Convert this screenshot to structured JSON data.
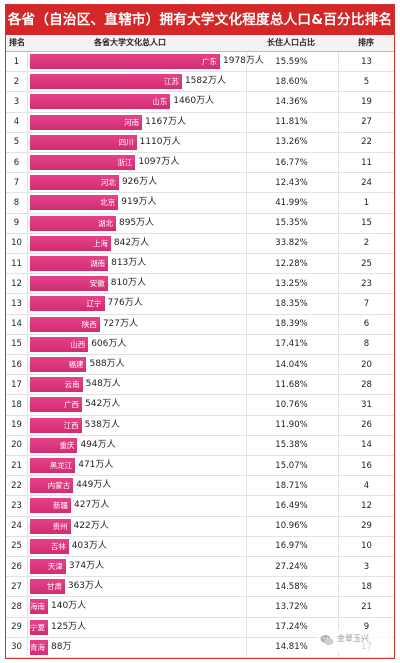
{
  "title": "各省（自治区、直辖市）拥有大学文化程度总人口&百分比排名",
  "watermark": {
    "text": "金翠玉兴",
    "icon": "wechat-icon"
  },
  "colors": {
    "title_bg": "#d42727",
    "bar": "#e0357d",
    "header_bg": "#f3f3f3"
  },
  "chart_data": {
    "type": "table",
    "columns": [
      "排名",
      "各省大学文化总人口",
      "长住人口占比",
      "排序"
    ],
    "value_unit": "万人",
    "rows": [
      {
        "rank": "1",
        "province": "广东",
        "population": 1978,
        "population_label": "1978万人",
        "share": "15.59%",
        "order": "13"
      },
      {
        "rank": "2",
        "province": "江苏",
        "population": 1582,
        "population_label": "1582万人",
        "share": "18.60%",
        "order": "5"
      },
      {
        "rank": "3",
        "province": "山东",
        "population": 1460,
        "population_label": "1460万人",
        "share": "14.36%",
        "order": "19"
      },
      {
        "rank": "4",
        "province": "河南",
        "population": 1167,
        "population_label": "1167万人",
        "share": "11.81%",
        "order": "27"
      },
      {
        "rank": "5",
        "province": "四川",
        "population": 1110,
        "population_label": "1110万人",
        "share": "13.26%",
        "order": "22"
      },
      {
        "rank": "6",
        "province": "浙江",
        "population": 1097,
        "population_label": "1097万人",
        "share": "16.77%",
        "order": "11"
      },
      {
        "rank": "7",
        "province": "河北",
        "population": 926,
        "population_label": "926万人",
        "share": "12.43%",
        "order": "24"
      },
      {
        "rank": "8",
        "province": "北京",
        "population": 919,
        "population_label": "919万人",
        "share": "41.99%",
        "order": "1"
      },
      {
        "rank": "9",
        "province": "湖北",
        "population": 895,
        "population_label": "895万人",
        "share": "15.35%",
        "order": "15"
      },
      {
        "rank": "10",
        "province": "上海",
        "population": 842,
        "population_label": "842万人",
        "share": "33.82%",
        "order": "2"
      },
      {
        "rank": "11",
        "province": "湖南",
        "population": 813,
        "population_label": "813万人",
        "share": "12.28%",
        "order": "25"
      },
      {
        "rank": "12",
        "province": "安徽",
        "population": 810,
        "population_label": "810万人",
        "share": "13.25%",
        "order": "23"
      },
      {
        "rank": "13",
        "province": "辽宁",
        "population": 776,
        "population_label": "776万人",
        "share": "18.35%",
        "order": "7"
      },
      {
        "rank": "14",
        "province": "陕西",
        "population": 727,
        "population_label": "727万人",
        "share": "18.39%",
        "order": "6"
      },
      {
        "rank": "15",
        "province": "山西",
        "population": 606,
        "population_label": "606万人",
        "share": "17.41%",
        "order": "8"
      },
      {
        "rank": "16",
        "province": "福建",
        "population": 588,
        "population_label": "588万人",
        "share": "14.04%",
        "order": "20"
      },
      {
        "rank": "17",
        "province": "云南",
        "population": 548,
        "population_label": "548万人",
        "share": "11.68%",
        "order": "28"
      },
      {
        "rank": "18",
        "province": "广西",
        "population": 542,
        "population_label": "542万人",
        "share": "10.76%",
        "order": "31"
      },
      {
        "rank": "19",
        "province": "江西",
        "population": 538,
        "population_label": "538万人",
        "share": "11.90%",
        "order": "26"
      },
      {
        "rank": "20",
        "province": "重庆",
        "population": 494,
        "population_label": "494万人",
        "share": "15.38%",
        "order": "14"
      },
      {
        "rank": "21",
        "province": "黑龙江",
        "population": 471,
        "population_label": "471万人",
        "share": "15.07%",
        "order": "16"
      },
      {
        "rank": "22",
        "province": "内蒙古",
        "population": 449,
        "population_label": "449万人",
        "share": "18.71%",
        "order": "4"
      },
      {
        "rank": "23",
        "province": "新疆",
        "population": 427,
        "population_label": "427万人",
        "share": "16.49%",
        "order": "12"
      },
      {
        "rank": "24",
        "province": "贵州",
        "population": 422,
        "population_label": "422万人",
        "share": "10.96%",
        "order": "29"
      },
      {
        "rank": "25",
        "province": "吉林",
        "population": 403,
        "population_label": "403万人",
        "share": "16.97%",
        "order": "10"
      },
      {
        "rank": "26",
        "province": "天津",
        "population": 374,
        "population_label": "374万人",
        "share": "27.24%",
        "order": "3"
      },
      {
        "rank": "27",
        "province": "甘肃",
        "population": 363,
        "population_label": "363万人",
        "share": "14.58%",
        "order": "18"
      },
      {
        "rank": "28",
        "province": "海南",
        "population": 140,
        "population_label": "140万人",
        "share": "13.72%",
        "order": "21"
      },
      {
        "rank": "29",
        "province": "宁夏",
        "population": 125,
        "population_label": "125万人",
        "share": "17.24%",
        "order": "9"
      },
      {
        "rank": "30",
        "province": "青海",
        "population": 88,
        "population_label": "88万",
        "share": "14.81%",
        "order": "17"
      }
    ]
  }
}
